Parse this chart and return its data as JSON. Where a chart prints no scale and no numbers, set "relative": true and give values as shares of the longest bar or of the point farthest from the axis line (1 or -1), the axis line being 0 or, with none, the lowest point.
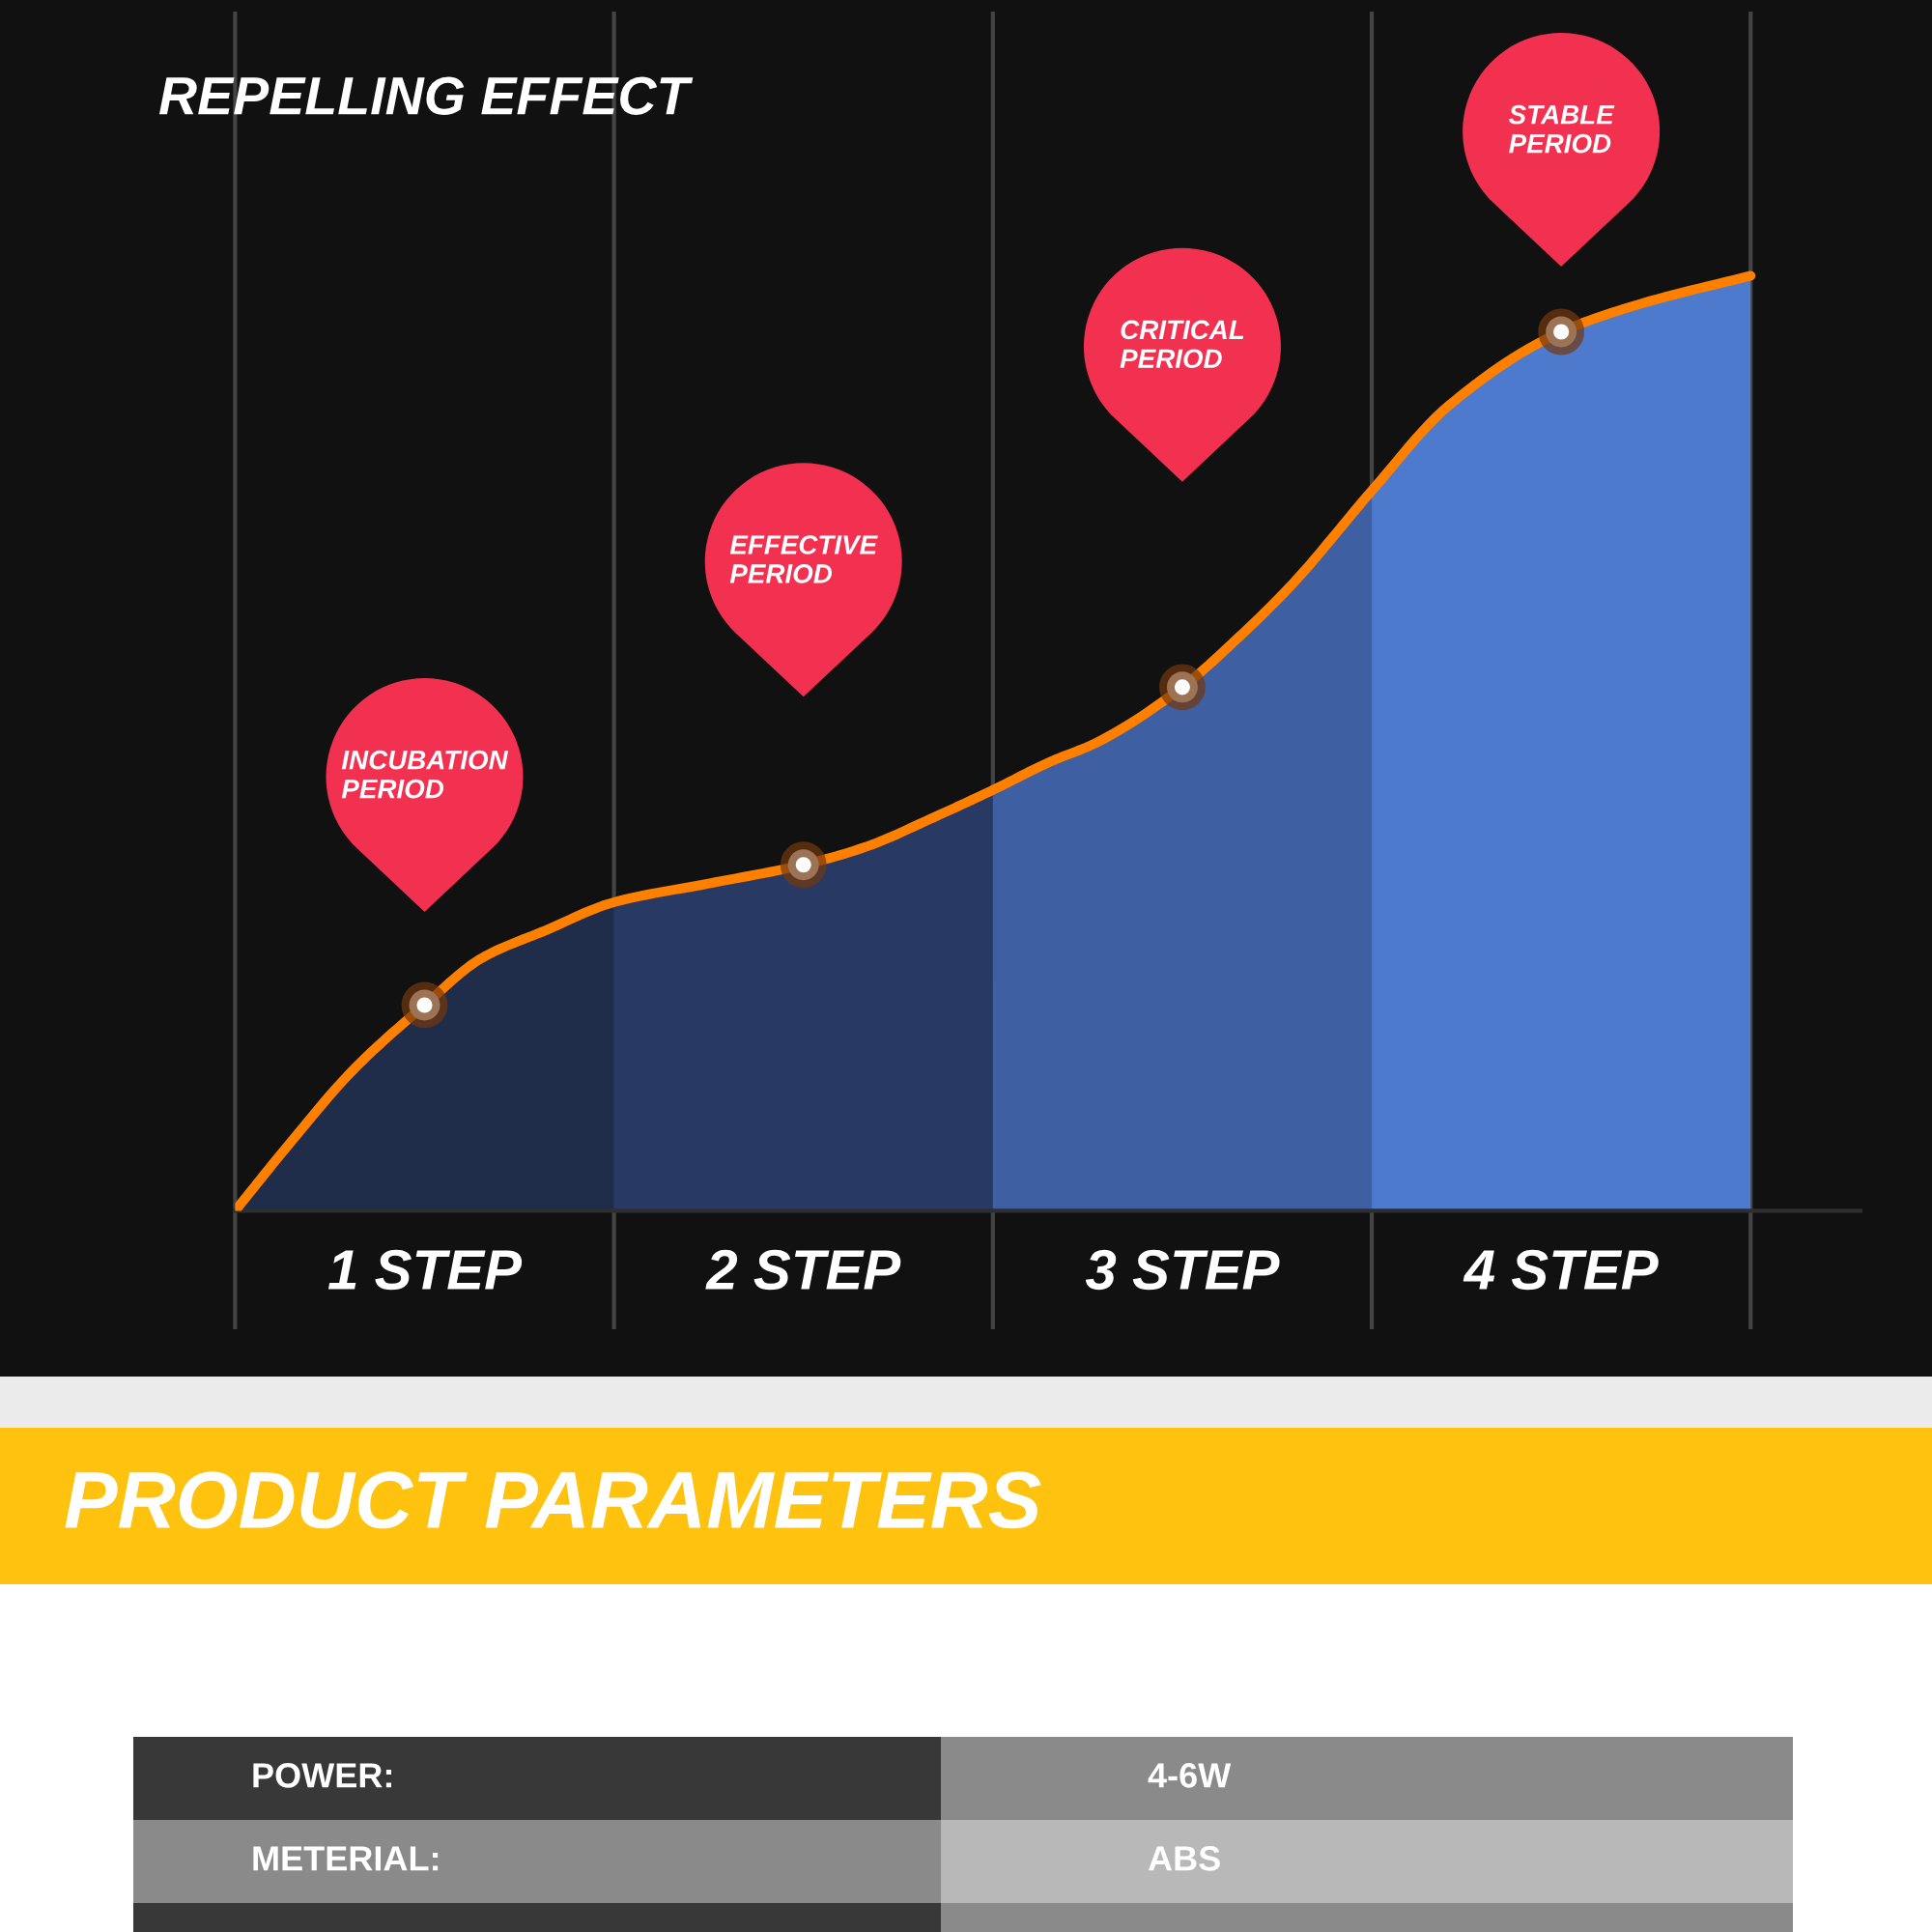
{
  "chart_data": [
    {
      "type": "area",
      "title": "REPELLING EFFECT",
      "relative": true,
      "xlim": [
        0,
        4.29
      ],
      "xticks": [
        {
          "value": 0.5,
          "label": "1 STEP"
        },
        {
          "value": 1.5,
          "label": "2 STEP"
        },
        {
          "value": 2.5,
          "label": "3 STEP"
        },
        {
          "value": 3.5,
          "label": "4 STEP"
        }
      ],
      "series": [
        {
          "type": "area",
          "color": "#1f2c4a",
          "x": [
            0,
            0.14,
            0.31,
            0.5,
            0.65,
            0.82,
            1
          ],
          "values": [
            0,
            0.07,
            0.15,
            0.22,
            0.27,
            0.3,
            0.33
          ]
        },
        {
          "type": "area",
          "color": "#283a63",
          "x": [
            1,
            1.25,
            1.5,
            1.67,
            1.84,
            2
          ],
          "values": [
            0.33,
            0.35,
            0.37,
            0.39,
            0.42,
            0.45
          ]
        },
        {
          "type": "area",
          "color": "#3e5fa1",
          "x": [
            2,
            2.15,
            2.27,
            2.5,
            2.64,
            2.79,
            3
          ],
          "values": [
            0.45,
            0.48,
            0.5,
            0.56,
            0.61,
            0.67,
            0.77
          ]
        },
        {
          "type": "area",
          "color": "#4d7acd",
          "x": [
            3,
            3.2,
            3.5,
            3.71,
            4
          ],
          "values": [
            0.77,
            0.86,
            0.94,
            0.97,
            1
          ]
        },
        {
          "type": "line",
          "color": "#ff8000",
          "x": [
            0,
            0.14,
            0.31,
            0.5,
            0.65,
            0.82,
            1,
            1.25,
            1.5,
            1.67,
            1.84,
            2,
            2.15,
            2.27,
            2.5,
            2.64,
            2.79,
            3,
            3.2,
            3.5,
            3.71,
            4
          ],
          "values": [
            0,
            0.07,
            0.15,
            0.22,
            0.27,
            0.3,
            0.33,
            0.35,
            0.37,
            0.39,
            0.42,
            0.45,
            0.48,
            0.5,
            0.56,
            0.61,
            0.67,
            0.77,
            0.86,
            0.94,
            0.97,
            1
          ]
        },
        {
          "type": "scatter",
          "color": "#ffffff",
          "marker": "circle",
          "x": [
            0.5,
            1.5,
            2.5,
            3.5
          ],
          "values": [
            0.22,
            0.37,
            0.56,
            0.94
          ]
        }
      ],
      "ref_lines": [
        {
          "axis": "x",
          "value": 0,
          "color": "#444444"
        },
        {
          "axis": "x",
          "value": 1,
          "color": "#444444"
        },
        {
          "axis": "x",
          "value": 2,
          "color": "#444444"
        },
        {
          "axis": "x",
          "value": 3,
          "color": "#444444"
        },
        {
          "axis": "x",
          "value": 4,
          "color": "#444444"
        }
      ],
      "annotations": [
        "INCUBATION\nPERIOD",
        "EFFECTIVE\nPERIOD",
        "CRITICAL\nPERIOD",
        "STABLE\nPERIOD"
      ]
    },
    {
      "type": "other",
      "title": "PRODUCT PARAMETERS",
      "annotations": [
        "POWER:",
        "4-6W",
        "METERIAL:",
        "ABS"
      ]
    }
  ]
}
